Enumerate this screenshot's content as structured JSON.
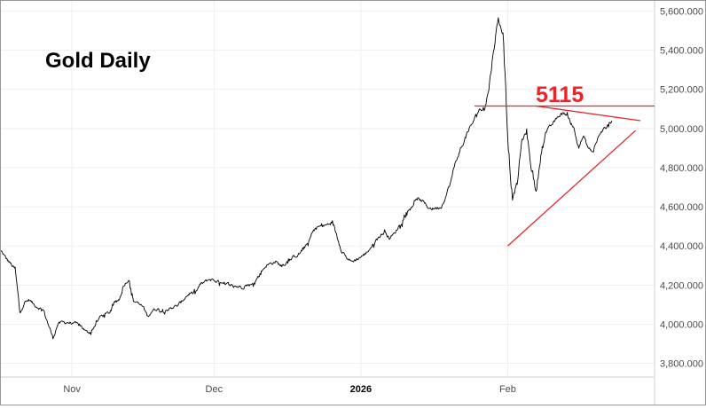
{
  "chart_data": {
    "type": "line",
    "title": "Gold Daily",
    "annotation_label": "5115",
    "series": [
      {
        "values": [
          [
            "2025-10-17",
            4375
          ],
          [
            "2025-10-18",
            4340
          ],
          [
            "2025-10-20",
            4280
          ],
          [
            "2025-10-21",
            4060
          ],
          [
            "2025-10-22",
            4110
          ],
          [
            "2025-10-23",
            4125
          ],
          [
            "2025-10-24",
            4100
          ],
          [
            "2025-10-26",
            4070
          ],
          [
            "2025-10-27",
            4000
          ],
          [
            "2025-10-28",
            3930
          ],
          [
            "2025-10-29",
            4000
          ],
          [
            "2025-10-30",
            4010
          ],
          [
            "2025-10-31",
            4010
          ],
          [
            "2025-11-02",
            4000
          ],
          [
            "2025-11-03",
            3990
          ],
          [
            "2025-11-04",
            3960
          ],
          [
            "2025-11-05",
            3960
          ],
          [
            "2025-11-06",
            4000
          ],
          [
            "2025-11-07",
            4040
          ],
          [
            "2025-11-09",
            4060
          ],
          [
            "2025-11-10",
            4110
          ],
          [
            "2025-11-11",
            4130
          ],
          [
            "2025-11-12",
            4200
          ],
          [
            "2025-11-13",
            4230
          ],
          [
            "2025-11-14",
            4120
          ],
          [
            "2025-11-16",
            4090
          ],
          [
            "2025-11-17",
            4040
          ],
          [
            "2025-11-18",
            4070
          ],
          [
            "2025-11-19",
            4080
          ],
          [
            "2025-11-20",
            4065
          ],
          [
            "2025-11-21",
            4075
          ],
          [
            "2025-11-23",
            4090
          ],
          [
            "2025-11-24",
            4110
          ],
          [
            "2025-11-25",
            4140
          ],
          [
            "2025-11-26",
            4160
          ],
          [
            "2025-11-27",
            4155
          ],
          [
            "2025-11-28",
            4200
          ],
          [
            "2025-11-30",
            4230
          ],
          [
            "2025-12-01",
            4225
          ],
          [
            "2025-12-02",
            4215
          ],
          [
            "2025-12-03",
            4200
          ],
          [
            "2025-12-04",
            4205
          ],
          [
            "2025-12-05",
            4195
          ],
          [
            "2025-12-07",
            4190
          ],
          [
            "2025-12-08",
            4200
          ],
          [
            "2025-12-09",
            4200
          ],
          [
            "2025-12-10",
            4230
          ],
          [
            "2025-12-11",
            4270
          ],
          [
            "2025-12-12",
            4300
          ],
          [
            "2025-12-14",
            4320
          ],
          [
            "2025-12-15",
            4300
          ],
          [
            "2025-12-16",
            4310
          ],
          [
            "2025-12-17",
            4330
          ],
          [
            "2025-12-18",
            4345
          ],
          [
            "2025-12-19",
            4360
          ],
          [
            "2025-12-21",
            4420
          ],
          [
            "2025-12-22",
            4480
          ],
          [
            "2025-12-23",
            4500
          ],
          [
            "2025-12-24",
            4500
          ],
          [
            "2025-12-26",
            4520
          ],
          [
            "2025-12-28",
            4380
          ],
          [
            "2025-12-29",
            4340
          ],
          [
            "2025-12-30",
            4320
          ],
          [
            "2025-12-31",
            4330
          ],
          [
            "2026-01-02",
            4360
          ],
          [
            "2026-01-04",
            4420
          ],
          [
            "2026-01-05",
            4450
          ],
          [
            "2026-01-06",
            4470
          ],
          [
            "2026-01-07",
            4440
          ],
          [
            "2026-01-08",
            4460
          ],
          [
            "2026-01-09",
            4500
          ],
          [
            "2026-01-11",
            4580
          ],
          [
            "2026-01-12",
            4610
          ],
          [
            "2026-01-13",
            4640
          ],
          [
            "2026-01-14",
            4630
          ],
          [
            "2026-01-15",
            4600
          ],
          [
            "2026-01-16",
            4590
          ],
          [
            "2026-01-18",
            4600
          ],
          [
            "2026-01-19",
            4660
          ],
          [
            "2026-01-20",
            4730
          ],
          [
            "2026-01-21",
            4830
          ],
          [
            "2026-01-22",
            4890
          ],
          [
            "2026-01-23",
            4950
          ],
          [
            "2026-01-25",
            5050
          ],
          [
            "2026-01-26",
            5100
          ],
          [
            "2026-01-27",
            5090
          ],
          [
            "2026-01-28",
            5200
          ],
          [
            "2026-01-29",
            5400
          ],
          [
            "2026-01-30",
            5560
          ],
          [
            "2026-01-31",
            5480
          ],
          [
            "2026-02-01",
            4960
          ],
          [
            "2026-02-02",
            4640
          ],
          [
            "2026-02-03",
            4720
          ],
          [
            "2026-02-04",
            4940
          ],
          [
            "2026-02-05",
            4980
          ],
          [
            "2026-02-06",
            4800
          ],
          [
            "2026-02-07",
            4670
          ],
          [
            "2026-02-08",
            4870
          ],
          [
            "2026-02-09",
            4980
          ],
          [
            "2026-02-10",
            5010
          ],
          [
            "2026-02-11",
            5040
          ],
          [
            "2026-02-12",
            5070
          ],
          [
            "2026-02-13",
            5080
          ],
          [
            "2026-02-14",
            5050
          ],
          [
            "2026-02-15",
            5000
          ],
          [
            "2026-02-16",
            4910
          ],
          [
            "2026-02-17",
            4960
          ],
          [
            "2026-02-18",
            4900
          ],
          [
            "2026-02-19",
            4880
          ],
          [
            "2026-02-20",
            4950
          ],
          [
            "2026-02-21",
            4990
          ],
          [
            "2026-02-22",
            5010
          ],
          [
            "2026-02-23",
            5040
          ]
        ]
      }
    ],
    "x_ticks": [
      {
        "date": "2025-11-01",
        "label": "Nov",
        "bold": false
      },
      {
        "date": "2025-12-01",
        "label": "Dec",
        "bold": false
      },
      {
        "date": "2026-01-01",
        "label": "2026",
        "bold": true
      },
      {
        "date": "2026-02-01",
        "label": "Feb",
        "bold": false
      }
    ],
    "y_ticks": [
      {
        "value": 3800,
        "label": "3,800.000"
      },
      {
        "value": 4000,
        "label": "4,000.000"
      },
      {
        "value": 4200,
        "label": "4,200.000"
      },
      {
        "value": 4400,
        "label": "4,400.000"
      },
      {
        "value": 4600,
        "label": "4,600.000"
      },
      {
        "value": 4800,
        "label": "4,800.000"
      },
      {
        "value": 5000,
        "label": "5,000.000"
      },
      {
        "value": 5200,
        "label": "5,200.000"
      },
      {
        "value": 5400,
        "label": "5,400.000"
      },
      {
        "value": 5600,
        "label": "5,600.000"
      }
    ],
    "xlim": [
      "2025-10-17",
      "2026-03-04"
    ],
    "ylim": [
      3730,
      5625
    ],
    "grid": true,
    "annotations": [
      {
        "type": "horizontal_line",
        "from": [
          "2026-01-25",
          5115
        ],
        "to": [
          "2026-03-04",
          5115
        ]
      },
      {
        "type": "trendline",
        "from": [
          "2026-02-07",
          5115
        ],
        "to": [
          "2026-03-01",
          5040
        ]
      },
      {
        "type": "trendline",
        "from": [
          "2026-02-01",
          4400
        ],
        "to": [
          "2026-02-28",
          4990
        ]
      }
    ],
    "colors": {
      "line": "#000000",
      "annotation": "#e8252a",
      "grid": "#efefef",
      "axis_text": "#4a4a4a"
    }
  }
}
